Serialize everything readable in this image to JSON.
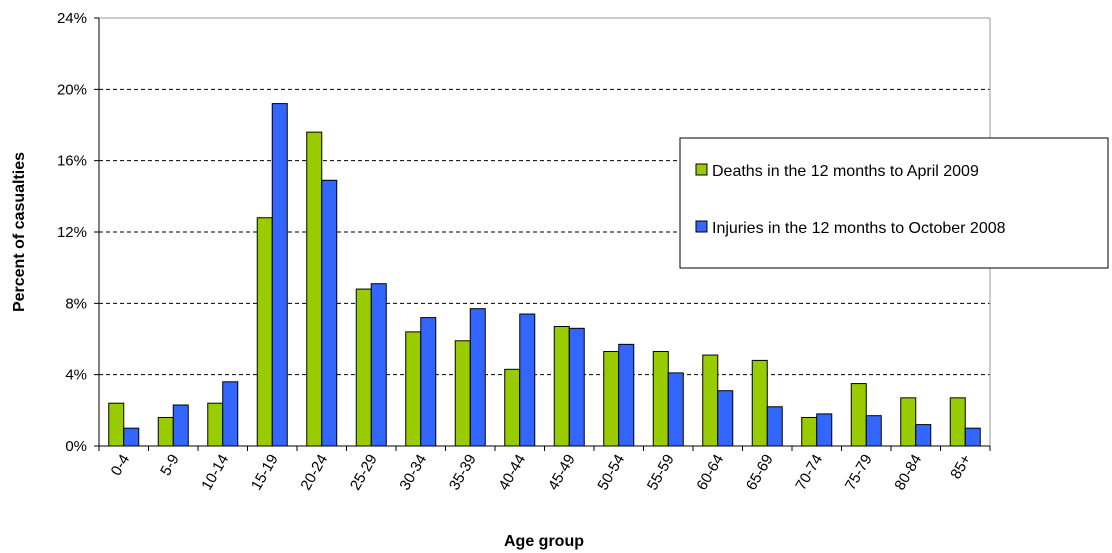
{
  "chart_data": {
    "type": "bar",
    "title": "",
    "xlabel": "Age group",
    "ylabel": "Percent of casualties",
    "ylim": [
      0,
      24
    ],
    "yticks": [
      "0%",
      "4%",
      "8%",
      "12%",
      "16%",
      "20%",
      "24%"
    ],
    "ytick_values": [
      0,
      4,
      8,
      12,
      16,
      20,
      24
    ],
    "grid": "horizontal dashed",
    "legend_position": "right",
    "categories": [
      "0-4",
      "5-9",
      "10-14",
      "15-19",
      "20-24",
      "25-29",
      "30-34",
      "35-39",
      "40-44",
      "45-49",
      "50-54",
      "55-59",
      "60-64",
      "65-69",
      "70-74",
      "75-79",
      "80-84",
      "85+"
    ],
    "series": [
      {
        "name": "Deaths in the 12 months to April 2009",
        "color": "#99cc00",
        "values": [
          2.4,
          1.6,
          2.4,
          12.8,
          17.6,
          8.8,
          6.4,
          5.9,
          4.3,
          6.7,
          5.3,
          5.3,
          5.1,
          4.8,
          1.6,
          3.5,
          2.7,
          2.7
        ]
      },
      {
        "name": "Injuries in the 12 months to October 2008",
        "color": "#3366ff",
        "values": [
          1.0,
          2.3,
          3.6,
          19.2,
          14.9,
          9.1,
          7.2,
          7.7,
          7.4,
          6.6,
          5.7,
          4.1,
          3.1,
          2.2,
          1.8,
          1.7,
          1.2,
          1.0
        ]
      }
    ]
  }
}
